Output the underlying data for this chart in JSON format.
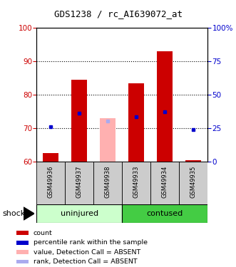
{
  "title": "GDS1238 / rc_AI639072_at",
  "samples": [
    "GSM49936",
    "GSM49937",
    "GSM49938",
    "GSM49933",
    "GSM49934",
    "GSM49935"
  ],
  "group_labels": [
    "uninjured",
    "contused"
  ],
  "factor_label": "shock",
  "ylim_left": [
    60,
    100
  ],
  "ylim_right": [
    0,
    100
  ],
  "yticks_left": [
    60,
    70,
    80,
    90,
    100
  ],
  "yticks_right": [
    0,
    25,
    50,
    75,
    100
  ],
  "ytick_right_labels": [
    "0",
    "25",
    "50",
    "75",
    "100%"
  ],
  "bar_bottom": 60,
  "red_bars": {
    "GSM49936": 62.5,
    "GSM49937": 84.5,
    "GSM49933": 83.5,
    "GSM49934": 93.0,
    "GSM49935": 60.5
  },
  "pink_bars": {
    "GSM49938": 73.0
  },
  "blue_dots": {
    "GSM49936": 70.5,
    "GSM49937": 74.5,
    "GSM49933": 73.5,
    "GSM49934": 75.0,
    "GSM49935": 69.5
  },
  "light_blue_dots": {
    "GSM49938": 72.2
  },
  "bar_color_red": "#cc0000",
  "bar_color_pink": "#ffb0b0",
  "dot_color_blue": "#0000cc",
  "dot_color_light_blue": "#aaaaee",
  "tick_color_left": "#cc0000",
  "tick_color_right": "#0000cc",
  "label_area_color": "#cccccc",
  "grid_yticks": [
    70,
    80,
    90
  ],
  "uninj_color": "#ccffcc",
  "cont_color": "#44cc44",
  "legend_items": [
    {
      "color": "#cc0000",
      "label": "count"
    },
    {
      "color": "#0000cc",
      "label": "percentile rank within the sample"
    },
    {
      "color": "#ffb0b0",
      "label": "value, Detection Call = ABSENT"
    },
    {
      "color": "#aaaaee",
      "label": "rank, Detection Call = ABSENT"
    }
  ]
}
